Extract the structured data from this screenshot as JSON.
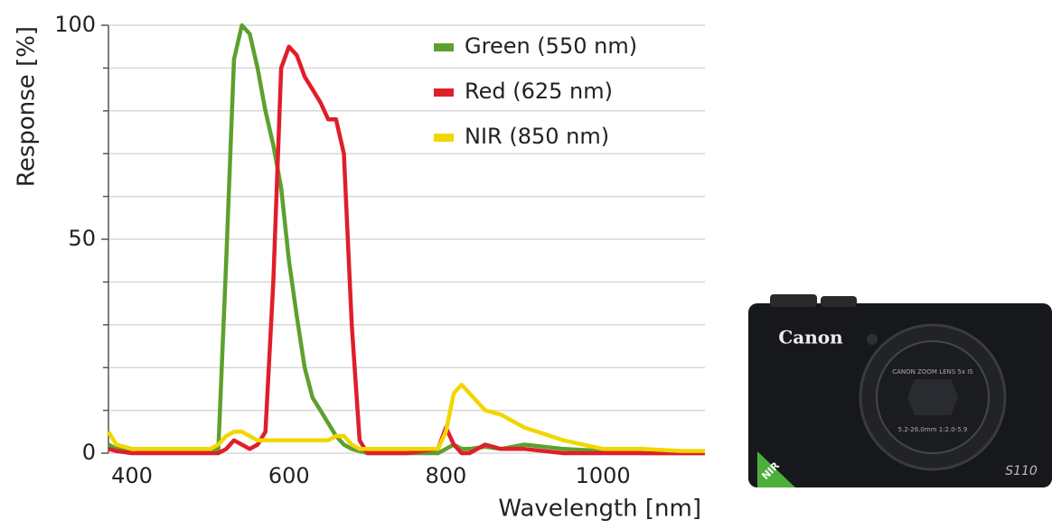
{
  "chart_data": {
    "type": "line",
    "y_label": "Response [%]",
    "x_label": "Wavelength [nm]",
    "x": [
      370,
      380,
      400,
      450,
      500,
      510,
      520,
      530,
      540,
      550,
      560,
      570,
      580,
      590,
      600,
      610,
      620,
      630,
      640,
      650,
      660,
      670,
      680,
      690,
      700,
      750,
      790,
      800,
      810,
      820,
      830,
      850,
      870,
      900,
      950,
      1000,
      1050,
      1100,
      1130
    ],
    "series": [
      {
        "name": "Green (550 nm)",
        "color": "#5da02e",
        "values": [
          2,
          1,
          1,
          0.5,
          0.5,
          1,
          45,
          92,
          100,
          98,
          90,
          80,
          72,
          62,
          45,
          32,
          20,
          13,
          10,
          7,
          4,
          2,
          1,
          0.5,
          0,
          0,
          0,
          1,
          2,
          1,
          1,
          1.5,
          1,
          2,
          1,
          0.5,
          0,
          0,
          0
        ]
      },
      {
        "name": "Red (625 nm)",
        "color": "#e01e2a",
        "values": [
          1,
          0.5,
          0,
          0,
          0,
          0,
          1,
          3,
          2,
          1,
          2,
          5,
          40,
          90,
          95,
          93,
          88,
          85,
          82,
          78,
          78,
          70,
          30,
          3,
          0,
          0,
          1,
          6,
          2,
          0,
          0,
          2,
          1,
          1,
          0,
          0,
          0,
          0,
          0
        ]
      },
      {
        "name": "NIR (850 nm)",
        "color": "#f2d600",
        "values": [
          5,
          2,
          1,
          1,
          1,
          2,
          4,
          5,
          5,
          4,
          3,
          3,
          3,
          3,
          3,
          3,
          3,
          3,
          3,
          3,
          4,
          4,
          2,
          1,
          1,
          1,
          1,
          5,
          14,
          16,
          14,
          10,
          9,
          6,
          3,
          1,
          1,
          0.5,
          0.5
        ]
      }
    ],
    "xlim": [
      370,
      1130
    ],
    "xticks": [
      400,
      600,
      800,
      1000
    ],
    "ylim": [
      0,
      100
    ],
    "yticks": [
      0,
      50,
      100
    ],
    "y_gridlines": [
      10,
      20,
      30,
      40,
      60,
      70,
      80,
      90
    ],
    "grid": true,
    "legend": "top"
  },
  "camera": {
    "brand": "Canon",
    "model": "S110",
    "badge": "NIR",
    "lens_text": "CANON ZOOM LENS 5x IS",
    "lens_spec": "5.2-26.0mm 1:2.0-5.9"
  }
}
